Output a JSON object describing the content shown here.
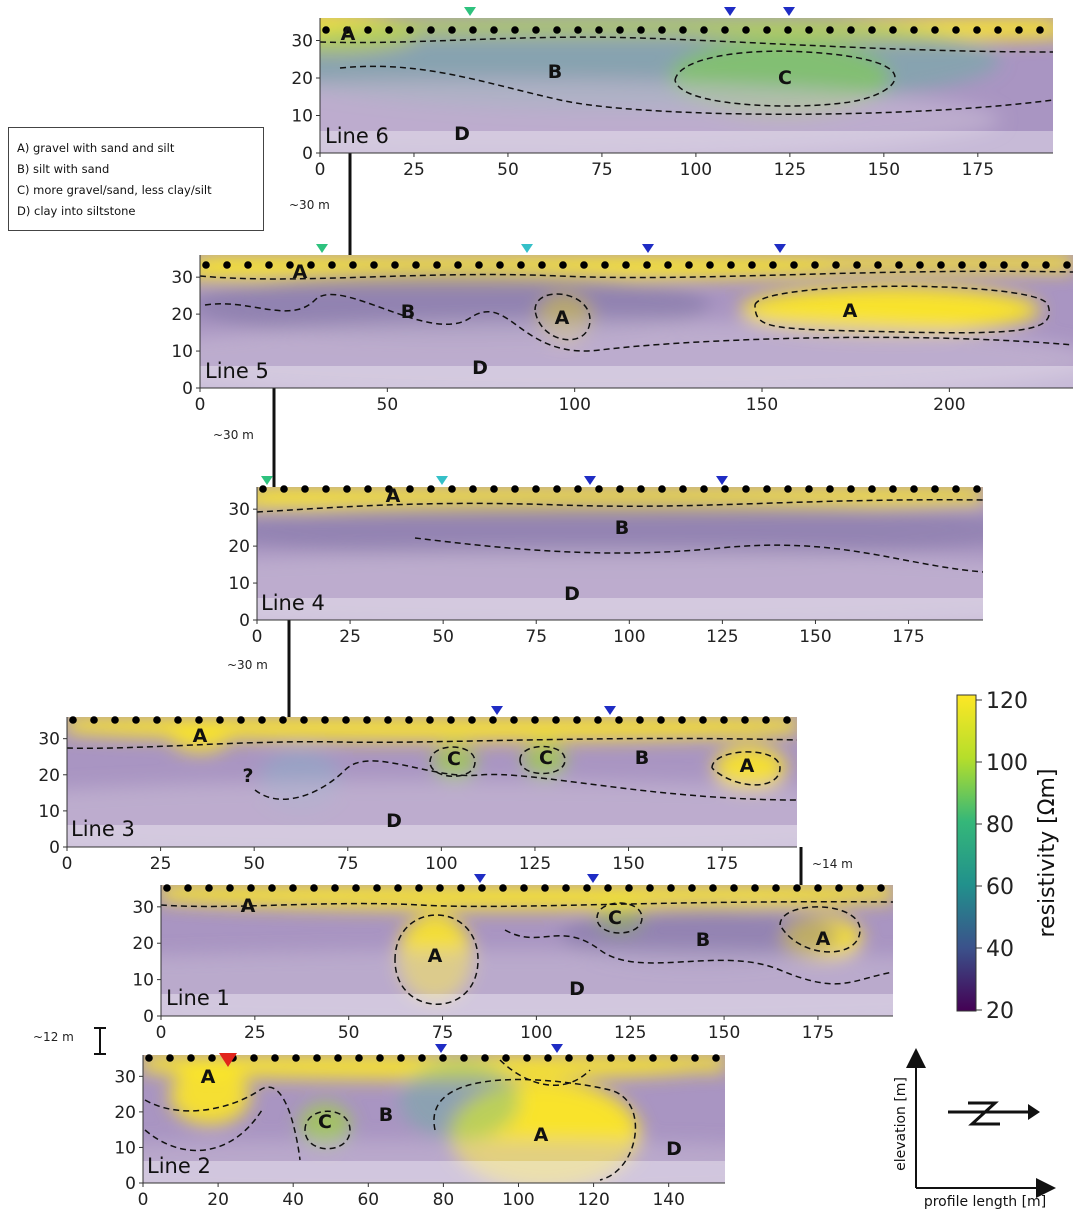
{
  "legend": {
    "items": [
      "A) gravel with sand and silt",
      "B) silt with sand",
      "C) more gravel/sand, less clay/silt",
      "D) clay into siltstone"
    ]
  },
  "spacing_labels": [
    "~30 m",
    "~30 m",
    "~30 m",
    "~14 m",
    "~12 m"
  ],
  "colorbar": {
    "label": "resistivity [Ωm]",
    "ticks": [
      "120",
      "100",
      "80",
      "60",
      "40",
      "20"
    ],
    "colors": [
      "#f7e642",
      "#b8dd3a",
      "#5ec962",
      "#21918c",
      "#3b528b",
      "#440154"
    ]
  },
  "axes_sketch": {
    "ylabel": "elevation [m]",
    "xlabel": "profile length [m]"
  },
  "profiles": [
    {
      "name": "Line 6",
      "yticks": [
        "0",
        "10",
        "20",
        "30"
      ],
      "xticks": [
        "0",
        "25",
        "50",
        "75",
        "100",
        "125",
        "150",
        "175"
      ],
      "units": [
        "A",
        "B",
        "C",
        "D"
      ],
      "markers": [
        "green",
        "blue",
        "blue"
      ]
    },
    {
      "name": "Line 5",
      "yticks": [
        "0",
        "10",
        "20",
        "30"
      ],
      "xticks": [
        "0",
        "50",
        "100",
        "150",
        "200"
      ],
      "units": [
        "A",
        "B",
        "A",
        "A",
        "D"
      ],
      "markers": [
        "green",
        "cyan",
        "blue",
        "blue"
      ]
    },
    {
      "name": "Line 4",
      "yticks": [
        "0",
        "10",
        "20",
        "30"
      ],
      "xticks": [
        "0",
        "25",
        "50",
        "75",
        "100",
        "125",
        "150",
        "175"
      ],
      "units": [
        "A",
        "B",
        "D"
      ],
      "markers": [
        "green",
        "cyan",
        "blue",
        "blue"
      ]
    },
    {
      "name": "Line 3",
      "yticks": [
        "0",
        "10",
        "20",
        "30"
      ],
      "xticks": [
        "0",
        "25",
        "50",
        "75",
        "100",
        "125",
        "150",
        "175"
      ],
      "units": [
        "A",
        "?",
        "C",
        "C",
        "B",
        "A",
        "D"
      ],
      "markers": [
        "blue",
        "blue"
      ]
    },
    {
      "name": "Line 1",
      "yticks": [
        "0",
        "10",
        "20",
        "30"
      ],
      "xticks": [
        "0",
        "25",
        "50",
        "75",
        "100",
        "125",
        "150",
        "175"
      ],
      "units": [
        "A",
        "A",
        "C",
        "B",
        "A",
        "D"
      ],
      "markers": [
        "blue",
        "blue"
      ]
    },
    {
      "name": "Line 2",
      "yticks": [
        "0",
        "10",
        "20",
        "30"
      ],
      "xticks": [
        "0",
        "20",
        "40",
        "60",
        "80",
        "100",
        "120",
        "140"
      ],
      "units": [
        "A",
        "C",
        "B",
        "A",
        "D"
      ],
      "markers": [
        "red",
        "blue",
        "blue"
      ]
    }
  ]
}
